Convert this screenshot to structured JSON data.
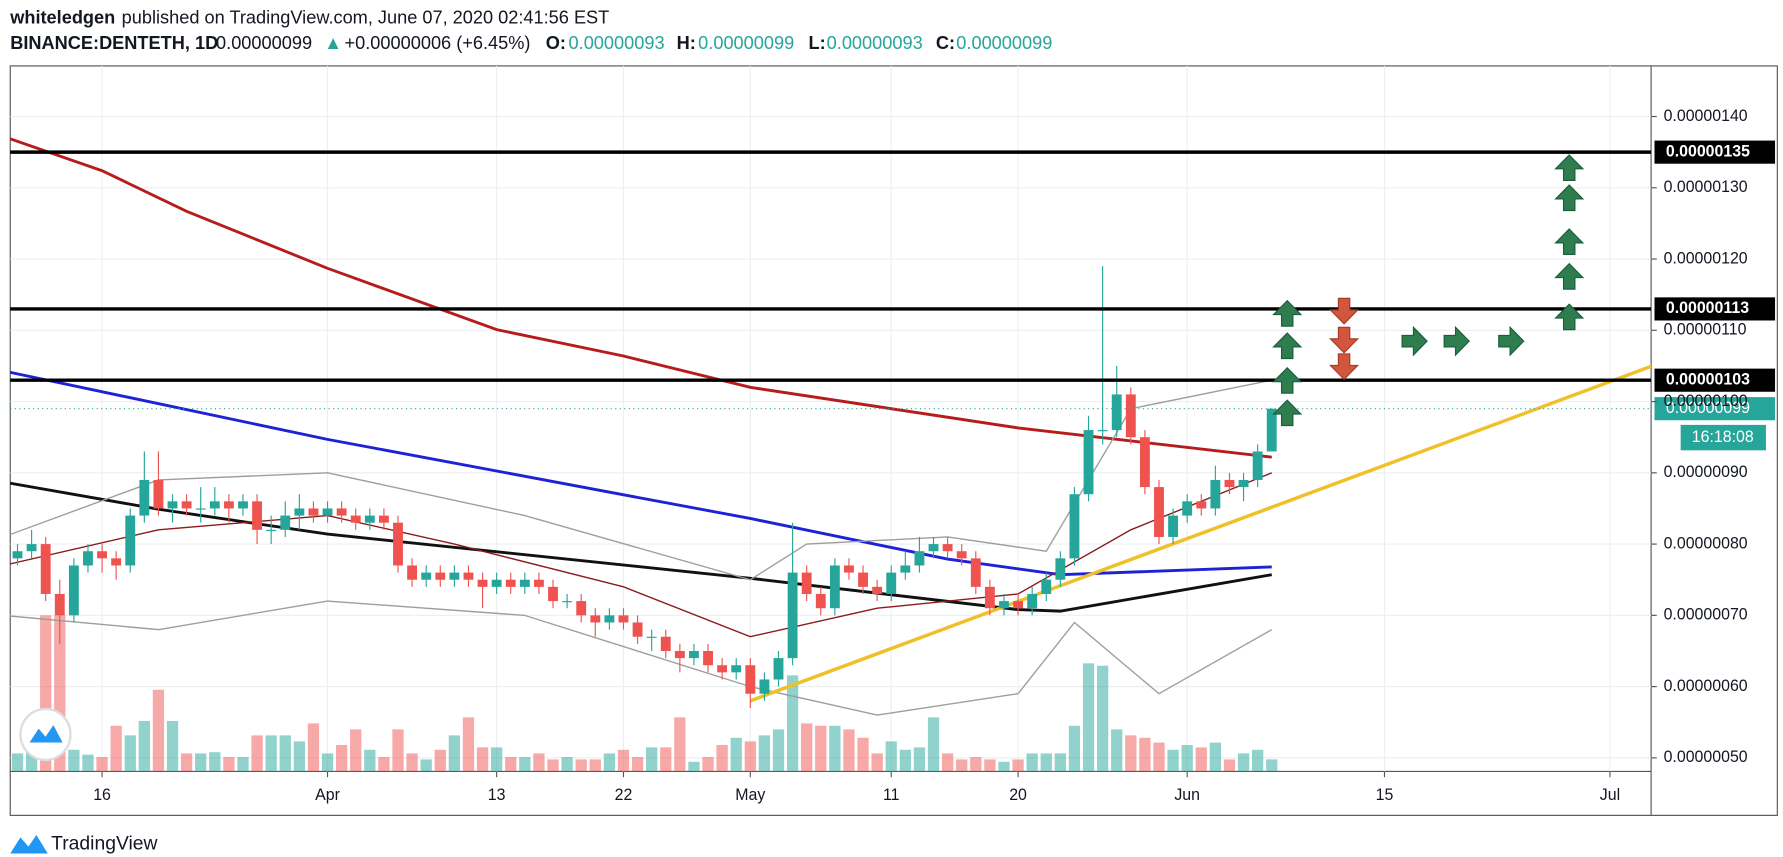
{
  "header": {
    "author": "whiteledgen",
    "published": "published on TradingView.com, June 07, 2020 02:41:56 EST",
    "symbol": "BINANCE:DENTETH, 1D",
    "last": "0.00000099",
    "arrow": "▲",
    "change": "+0.00000006 (+6.45%)",
    "o_label": "O:",
    "o": "0.00000093",
    "h_label": "H:",
    "h": "0.00000099",
    "l_label": "L:",
    "l": "0.00000093",
    "c_label": "C:",
    "c": "0.00000099"
  },
  "footer": {
    "brand": "TradingView"
  },
  "chart_data": {
    "type": "candlestick",
    "x": [
      "Mar 10",
      "Mar 11",
      "Mar 12",
      "Mar 13",
      "Mar 14",
      "Mar 15",
      "Mar 16",
      "Mar 17",
      "Mar 18",
      "Mar 19",
      "Mar 20",
      "Mar 21",
      "Mar 22",
      "Mar 23",
      "Mar 24",
      "Mar 25",
      "Mar 26",
      "Mar 27",
      "Mar 28",
      "Mar 29",
      "Mar 30",
      "Mar 31",
      "Apr 1",
      "Apr 2",
      "Apr 3",
      "Apr 4",
      "Apr 5",
      "Apr 6",
      "Apr 7",
      "Apr 8",
      "Apr 9",
      "Apr 10",
      "Apr 11",
      "Apr 12",
      "Apr 13",
      "Apr 14",
      "Apr 15",
      "Apr 16",
      "Apr 17",
      "Apr 18",
      "Apr 19",
      "Apr 20",
      "Apr 21",
      "Apr 22",
      "Apr 23",
      "Apr 24",
      "Apr 25",
      "Apr 26",
      "Apr 27",
      "Apr 28",
      "Apr 29",
      "Apr 30",
      "May 1",
      "May 2",
      "May 3",
      "May 4",
      "May 5",
      "May 6",
      "May 7",
      "May 8",
      "May 9",
      "May 10",
      "May 11",
      "May 12",
      "May 13",
      "May 14",
      "May 15",
      "May 16",
      "May 17",
      "May 18",
      "May 19",
      "May 20",
      "May 21",
      "May 22",
      "May 23",
      "May 24",
      "May 25",
      "May 26",
      "May 27",
      "May 28",
      "May 29",
      "May 30",
      "May 31",
      "Jun 1",
      "Jun 2",
      "Jun 3",
      "Jun 4",
      "Jun 5",
      "Jun 6",
      "Jun 7"
    ],
    "open": [
      7.8e-07,
      7.9e-07,
      8e-07,
      7.3e-07,
      7e-07,
      7.7e-07,
      7.9e-07,
      7.8e-07,
      7.7e-07,
      8.4e-07,
      8.9e-07,
      8.5e-07,
      8.6e-07,
      8.5e-07,
      8.5e-07,
      8.6e-07,
      8.5e-07,
      8.6e-07,
      8.2e-07,
      8.2e-07,
      8.4e-07,
      8.5e-07,
      8.4e-07,
      8.5e-07,
      8.4e-07,
      8.3e-07,
      8.4e-07,
      8.3e-07,
      7.7e-07,
      7.5e-07,
      7.6e-07,
      7.5e-07,
      7.6e-07,
      7.5e-07,
      7.4e-07,
      7.5e-07,
      7.4e-07,
      7.5e-07,
      7.4e-07,
      7.2e-07,
      7.2e-07,
      7e-07,
      6.9e-07,
      7e-07,
      6.9e-07,
      6.7e-07,
      6.7e-07,
      6.5e-07,
      6.4e-07,
      6.5e-07,
      6.3e-07,
      6.2e-07,
      6.3e-07,
      5.9e-07,
      6.1e-07,
      6.4e-07,
      7.6e-07,
      7.3e-07,
      7.1e-07,
      7.7e-07,
      7.6e-07,
      7.4e-07,
      7.3e-07,
      7.6e-07,
      7.7e-07,
      7.9e-07,
      8e-07,
      7.9e-07,
      7.8e-07,
      7.4e-07,
      7.1e-07,
      7.2e-07,
      7.1e-07,
      7.3e-07,
      7.5e-07,
      7.8e-07,
      8.7e-07,
      9.6e-07,
      9.6e-07,
      1.01e-06,
      9.5e-07,
      8.8e-07,
      8.1e-07,
      8.4e-07,
      8.6e-07,
      8.5e-07,
      8.9e-07,
      8.8e-07,
      8.9e-07,
      9.3e-07
    ],
    "high": [
      8e-07,
      8.2e-07,
      8.1e-07,
      7.5e-07,
      7.8e-07,
      8e-07,
      8e-07,
      7.9e-07,
      8.5e-07,
      9.3e-07,
      9.3e-07,
      8.7e-07,
      8.7e-07,
      8.8e-07,
      8.8e-07,
      8.7e-07,
      8.7e-07,
      8.7e-07,
      8.4e-07,
      8.6e-07,
      8.7e-07,
      8.6e-07,
      8.6e-07,
      8.6e-07,
      8.5e-07,
      8.5e-07,
      8.5e-07,
      8.4e-07,
      7.8e-07,
      7.7e-07,
      7.7e-07,
      7.7e-07,
      7.7e-07,
      7.6e-07,
      7.6e-07,
      7.6e-07,
      7.6e-07,
      7.6e-07,
      7.5e-07,
      7.3e-07,
      7.3e-07,
      7.1e-07,
      7.1e-07,
      7.1e-07,
      7e-07,
      6.8e-07,
      6.8e-07,
      6.6e-07,
      6.6e-07,
      6.6e-07,
      6.4e-07,
      6.4e-07,
      6.4e-07,
      6.2e-07,
      6.5e-07,
      8.3e-07,
      7.7e-07,
      7.4e-07,
      7.8e-07,
      7.8e-07,
      7.7e-07,
      7.5e-07,
      7.7e-07,
      7.9e-07,
      8.1e-07,
      8.1e-07,
      8.1e-07,
      8e-07,
      7.9e-07,
      7.5e-07,
      7.3e-07,
      7.3e-07,
      7.4e-07,
      7.6e-07,
      7.9e-07,
      8.8e-07,
      9.8e-07,
      1.19e-06,
      1.05e-06,
      1.02e-06,
      9.6e-07,
      8.9e-07,
      8.5e-07,
      8.7e-07,
      8.7e-07,
      9.1e-07,
      9e-07,
      9e-07,
      9.4e-07,
      9.9e-07
    ],
    "low": [
      7.7e-07,
      7.8e-07,
      7.2e-07,
      6.6e-07,
      6.9e-07,
      7.6e-07,
      7.6e-07,
      7.5e-07,
      7.6e-07,
      8.3e-07,
      8.4e-07,
      8.3e-07,
      8.4e-07,
      8.3e-07,
      8.4e-07,
      8.3e-07,
      8.4e-07,
      8e-07,
      8e-07,
      8.1e-07,
      8.2e-07,
      8.3e-07,
      8.3e-07,
      8.3e-07,
      8.2e-07,
      8.2e-07,
      8.2e-07,
      7.6e-07,
      7.4e-07,
      7.4e-07,
      7.4e-07,
      7.4e-07,
      7.4e-07,
      7.1e-07,
      7.3e-07,
      7.3e-07,
      7.3e-07,
      7.3e-07,
      7.1e-07,
      7.1e-07,
      6.9e-07,
      6.7e-07,
      6.8e-07,
      6.8e-07,
      6.6e-07,
      6.5e-07,
      6.4e-07,
      6.2e-07,
      6.3e-07,
      6.2e-07,
      6.1e-07,
      6.1e-07,
      5.7e-07,
      5.8e-07,
      6e-07,
      6.3e-07,
      7.2e-07,
      7e-07,
      7e-07,
      7.5e-07,
      7.3e-07,
      7.2e-07,
      7.2e-07,
      7.5e-07,
      7.6e-07,
      7.8e-07,
      7.8e-07,
      7.7e-07,
      7.3e-07,
      7e-07,
      7e-07,
      7e-07,
      7e-07,
      7.2e-07,
      7.4e-07,
      7.7e-07,
      8.6e-07,
      9.4e-07,
      9.5e-07,
      9.4e-07,
      8.7e-07,
      8e-07,
      8e-07,
      8.3e-07,
      8.4e-07,
      8.4e-07,
      8.7e-07,
      8.6e-07,
      8.8e-07,
      9.3e-07
    ],
    "close": [
      7.9e-07,
      8e-07,
      7.3e-07,
      7e-07,
      7.7e-07,
      7.9e-07,
      7.8e-07,
      7.7e-07,
      8.4e-07,
      8.9e-07,
      8.5e-07,
      8.6e-07,
      8.5e-07,
      8.5e-07,
      8.6e-07,
      8.5e-07,
      8.6e-07,
      8.2e-07,
      8.2e-07,
      8.4e-07,
      8.5e-07,
      8.4e-07,
      8.5e-07,
      8.4e-07,
      8.3e-07,
      8.4e-07,
      8.3e-07,
      7.7e-07,
      7.5e-07,
      7.6e-07,
      7.5e-07,
      7.6e-07,
      7.5e-07,
      7.4e-07,
      7.5e-07,
      7.4e-07,
      7.5e-07,
      7.4e-07,
      7.2e-07,
      7.2e-07,
      7e-07,
      6.9e-07,
      7e-07,
      6.9e-07,
      6.7e-07,
      6.7e-07,
      6.5e-07,
      6.4e-07,
      6.5e-07,
      6.3e-07,
      6.2e-07,
      6.3e-07,
      5.9e-07,
      6.1e-07,
      6.4e-07,
      7.6e-07,
      7.3e-07,
      7.1e-07,
      7.7e-07,
      7.6e-07,
      7.4e-07,
      7.3e-07,
      7.6e-07,
      7.7e-07,
      7.9e-07,
      8e-07,
      7.9e-07,
      7.8e-07,
      7.4e-07,
      7.1e-07,
      7.2e-07,
      7.1e-07,
      7.3e-07,
      7.5e-07,
      7.8e-07,
      8.7e-07,
      9.6e-07,
      9.6e-07,
      1.01e-06,
      9.5e-07,
      8.8e-07,
      8.1e-07,
      8.4e-07,
      8.6e-07,
      8.5e-07,
      8.9e-07,
      8.8e-07,
      8.9e-07,
      9.3e-07,
      9.9e-07
    ],
    "volume": [
      15,
      18,
      130,
      130,
      18,
      14,
      12,
      38,
      30,
      42,
      68,
      42,
      15,
      15,
      16,
      12,
      12,
      30,
      30,
      30,
      25,
      40,
      15,
      22,
      35,
      18,
      12,
      35,
      15,
      10,
      18,
      30,
      45,
      20,
      20,
      12,
      12,
      15,
      10,
      12,
      10,
      10,
      15,
      18,
      12,
      20,
      20,
      45,
      8,
      12,
      22,
      28,
      25,
      30,
      35,
      80,
      40,
      38,
      38,
      35,
      28,
      15,
      25,
      18,
      20,
      45,
      15,
      10,
      12,
      10,
      8,
      10,
      15,
      15,
      15,
      38,
      90,
      88,
      35,
      30,
      28,
      24,
      18,
      22,
      20,
      24,
      10,
      15,
      18,
      10
    ],
    "up_color": "#26a69a",
    "down_color": "#ef5350",
    "lines": [
      {
        "color": "#b71c1c",
        "width": 2.5,
        "x": [
          "Mar 9",
          "Mar 16",
          "Mar 22",
          "Apr 1",
          "Apr 13",
          "Apr 22",
          "May 1",
          "May 20",
          "Jun 7"
        ],
        "values": [
          1.372e-06,
          1.324e-06,
          1.267e-06,
          1.187e-06,
          1.101e-06,
          1.064e-06,
          1.02e-06,
          9.63e-07,
          9.22e-07
        ]
      },
      {
        "color": "#1e22d6",
        "width": 2.5,
        "x": [
          "Mar 9",
          "Apr 1",
          "May 1",
          "May 15",
          "May 23",
          "Jun 7"
        ],
        "values": [
          1.043e-06,
          9.47e-07,
          8.36e-07,
          7.79e-07,
          7.57e-07,
          7.68e-07
        ]
      },
      {
        "color": "#111111",
        "width": 2.5,
        "x": [
          "Mar 9",
          "Mar 20",
          "Apr 1",
          "May 1",
          "May 20",
          "May 23",
          "Jun 7"
        ],
        "values": [
          8.87e-07,
          8.49e-07,
          8.14e-07,
          7.52e-07,
          7.08e-07,
          7.06e-07,
          7.57e-07
        ]
      },
      {
        "color": "#8b1a1a",
        "width": 1.2,
        "x": [
          "Mar 9",
          "Mar 20",
          "Apr 1",
          "Apr 10",
          "Apr 22",
          "May 1",
          "May 10",
          "May 20",
          "May 28",
          "Jun 7"
        ],
        "values": [
          7.7e-07,
          8.2e-07,
          8.4e-07,
          8e-07,
          7.4e-07,
          6.7e-07,
          7.1e-07,
          7.3e-07,
          8.2e-07,
          9e-07
        ]
      },
      {
        "color": "#9e9e9e",
        "width": 1.2,
        "x": [
          "Mar 9",
          "Mar 20",
          "Apr 1",
          "Apr 15",
          "May 1",
          "May 5",
          "May 15",
          "May 22",
          "May 28",
          "Jun 7"
        ],
        "values": [
          8.1e-07,
          8.9e-07,
          9e-07,
          8.4e-07,
          7.5e-07,
          8e-07,
          8.1e-07,
          7.9e-07,
          9.9e-07,
          1.03e-06
        ]
      },
      {
        "color": "#9e9e9e",
        "width": 1.2,
        "x": [
          "Mar 9",
          "Mar 20",
          "Apr 1",
          "Apr 15",
          "May 1",
          "May 10",
          "May 20",
          "May 24",
          "May 30",
          "Jun 7"
        ],
        "values": [
          7e-07,
          6.8e-07,
          7.2e-07,
          7e-07,
          6e-07,
          5.6e-07,
          5.9e-07,
          6.9e-07,
          5.9e-07,
          6.8e-07
        ]
      },
      {
        "color": "#f0c02a",
        "width": 3,
        "x": [
          "May 1",
          "Jul 4"
        ],
        "values": [
          5.8e-07,
          1.05e-06
        ]
      }
    ],
    "levels": [
      {
        "value": 1.35e-06,
        "label": "0.00000135"
      },
      {
        "value": 1.13e-06,
        "label": "0.00000113"
      },
      {
        "value": 1.03e-06,
        "label": "0.00000103"
      }
    ],
    "last_price": {
      "value": 9.9e-07,
      "label": "0.00000099",
      "countdown": "16:18:08"
    },
    "xlim": [
      "Mar 9",
      "Jul 4"
    ],
    "xticks": [
      {
        "value": "Mar 16",
        "label": "16"
      },
      {
        "value": "Apr 1",
        "label": "Apr"
      },
      {
        "value": "Apr 13",
        "label": "13"
      },
      {
        "value": "Apr 22",
        "label": "22"
      },
      {
        "value": "May 1",
        "label": "May"
      },
      {
        "value": "May 11",
        "label": "11"
      },
      {
        "value": "May 20",
        "label": "20"
      },
      {
        "value": "Jun 1",
        "label": "Jun"
      },
      {
        "value": "Jun 15",
        "label": "15"
      },
      {
        "value": "Jul 1",
        "label": "Jul"
      }
    ],
    "ylim": [
      4.81e-07,
      1.471e-06
    ],
    "yticks": [
      {
        "value": 5e-07,
        "label": "0.00000050"
      },
      {
        "value": 6e-07,
        "label": "0.00000060"
      },
      {
        "value": 7e-07,
        "label": "0.00000070"
      },
      {
        "value": 8e-07,
        "label": "0.00000080"
      },
      {
        "value": 9e-07,
        "label": "0.00000090"
      },
      {
        "value": 1e-06,
        "label": "0.00000100"
      },
      {
        "value": 1.1e-06,
        "label": "0.00000110"
      },
      {
        "value": 1.2e-06,
        "label": "0.00000120"
      },
      {
        "value": 1.3e-06,
        "label": "0.00000130"
      },
      {
        "value": 1.4e-06,
        "label": "0.00000140"
      }
    ],
    "grid": true
  }
}
